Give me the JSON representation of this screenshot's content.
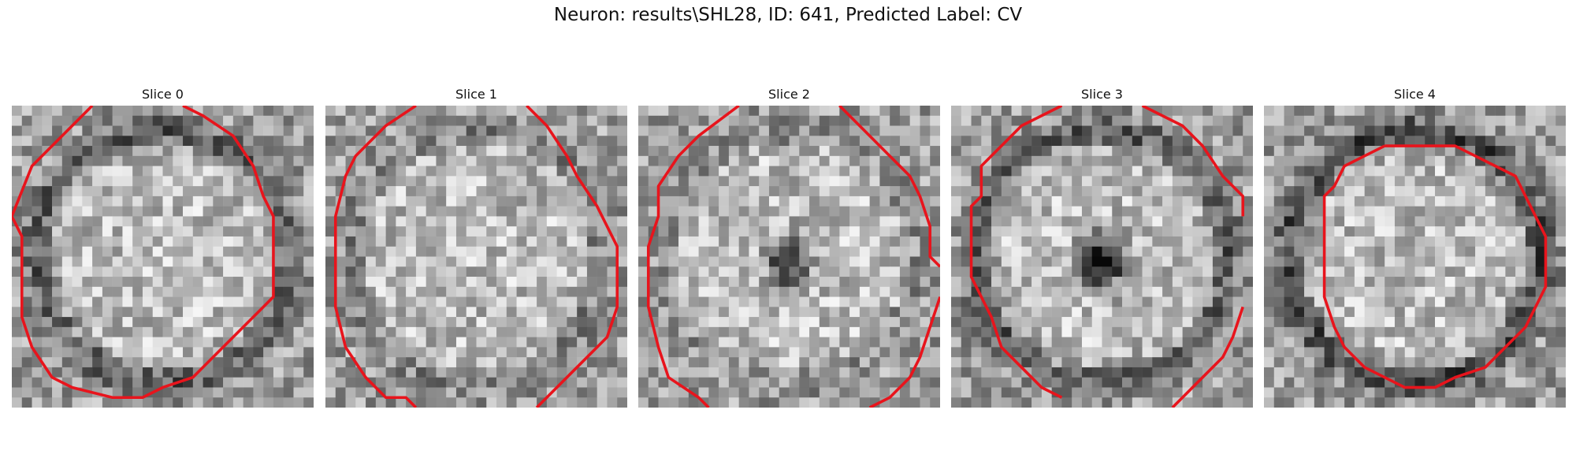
{
  "figure": {
    "title": "Neuron: results\\SHL28, ID: 641, Predicted Label: CV"
  },
  "slices": [
    {
      "title": "Slice 0",
      "center_dark": 0,
      "ring_dark": 0.55,
      "boundary": [
        [
          8,
          0
        ],
        [
          2,
          6
        ],
        [
          0,
          11
        ],
        [
          1,
          13
        ],
        [
          1,
          21
        ],
        [
          2,
          24
        ],
        [
          4,
          27
        ],
        [
          6,
          28
        ],
        [
          10,
          29
        ],
        [
          13,
          29
        ],
        [
          15,
          28
        ],
        [
          18,
          27
        ],
        [
          20,
          25
        ],
        [
          22,
          23
        ],
        [
          24,
          21
        ],
        [
          25,
          20
        ],
        [
          26,
          19
        ],
        [
          26,
          16
        ],
        [
          26,
          11
        ],
        [
          25,
          9
        ],
        [
          24,
          6
        ],
        [
          22,
          3
        ],
        [
          19,
          1
        ],
        [
          17,
          0
        ]
      ]
    },
    {
      "title": "Slice 1",
      "center_dark": 0,
      "ring_dark": 0.2,
      "boundary": [
        [
          9,
          0
        ],
        [
          6,
          2
        ],
        [
          3,
          5
        ],
        [
          2,
          7
        ],
        [
          1,
          11
        ],
        [
          1,
          14
        ],
        [
          1,
          20
        ],
        [
          2,
          24
        ],
        [
          4,
          27
        ],
        [
          6,
          29
        ],
        [
          8,
          29
        ],
        [
          9,
          30
        ]
      ],
      "boundary2": [
        [
          20,
          0
        ],
        [
          22,
          2
        ],
        [
          24,
          5
        ],
        [
          25,
          7
        ],
        [
          27,
          10
        ],
        [
          28,
          12
        ],
        [
          29,
          14
        ],
        [
          29,
          20
        ],
        [
          28,
          23
        ],
        [
          25,
          26
        ],
        [
          23,
          28
        ],
        [
          21,
          30
        ]
      ]
    },
    {
      "title": "Slice 2",
      "center_dark": 0.6,
      "ring_dark": 0.1,
      "boundary": [
        [
          10,
          0
        ],
        [
          6,
          3
        ],
        [
          4,
          5
        ],
        [
          2,
          8
        ],
        [
          2,
          11
        ],
        [
          1,
          14
        ],
        [
          1,
          20
        ],
        [
          2,
          24
        ],
        [
          3,
          27
        ],
        [
          6,
          29
        ],
        [
          7,
          30
        ]
      ],
      "boundary2": [
        [
          20,
          0
        ],
        [
          22,
          2
        ],
        [
          25,
          5
        ],
        [
          27,
          7
        ],
        [
          28,
          9
        ],
        [
          29,
          12
        ],
        [
          29,
          15
        ],
        [
          30,
          16
        ]
      ],
      "boundary3": [
        [
          30,
          19
        ],
        [
          29,
          22
        ],
        [
          28,
          25
        ],
        [
          27,
          27
        ],
        [
          25,
          29
        ],
        [
          23,
          30
        ]
      ]
    },
    {
      "title": "Slice 3",
      "center_dark": 0.8,
      "ring_dark": 0.55,
      "boundary": [
        [
          11,
          0
        ],
        [
          7,
          2
        ],
        [
          5,
          4
        ],
        [
          3,
          6
        ],
        [
          3,
          9
        ],
        [
          2,
          10
        ],
        [
          2,
          14
        ],
        [
          2,
          17
        ],
        [
          4,
          21
        ],
        [
          5,
          24
        ],
        [
          7,
          26
        ],
        [
          9,
          28
        ],
        [
          11,
          29
        ]
      ],
      "boundary2": [
        [
          19,
          0
        ],
        [
          23,
          2
        ],
        [
          25,
          4
        ],
        [
          27,
          7
        ],
        [
          29,
          9
        ],
        [
          29,
          11
        ]
      ],
      "boundary3": [
        [
          29,
          20
        ],
        [
          28,
          23
        ],
        [
          27,
          25
        ],
        [
          25,
          27
        ],
        [
          23,
          29
        ],
        [
          22,
          30
        ]
      ]
    },
    {
      "title": "Slice 4",
      "center_dark": 0,
      "ring_dark": 0.7,
      "boundary": [
        [
          12,
          4
        ],
        [
          10,
          5
        ],
        [
          8,
          6
        ],
        [
          7,
          8
        ],
        [
          6,
          9
        ],
        [
          6,
          12
        ],
        [
          6,
          15
        ],
        [
          6,
          19
        ],
        [
          7,
          22
        ],
        [
          8,
          24
        ],
        [
          10,
          26
        ],
        [
          12,
          27
        ],
        [
          14,
          28
        ],
        [
          17,
          28
        ],
        [
          19,
          27
        ],
        [
          22,
          26
        ],
        [
          24,
          24
        ],
        [
          26,
          22
        ],
        [
          27,
          20
        ],
        [
          28,
          18
        ],
        [
          28,
          13
        ],
        [
          27,
          11
        ],
        [
          26,
          9
        ],
        [
          25,
          7
        ],
        [
          23,
          6
        ],
        [
          21,
          5
        ],
        [
          19,
          4
        ],
        [
          12,
          4
        ]
      ]
    }
  ]
}
